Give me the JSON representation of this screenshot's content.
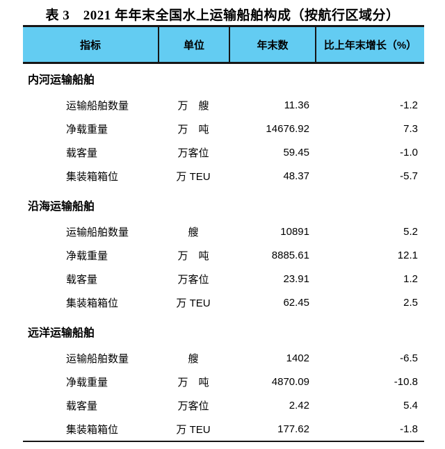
{
  "page": {
    "title": "表 3　2021 年年末全国水上运输船舶构成（按航行区域分）"
  },
  "colors": {
    "header_bg": "#63CCF2",
    "border": "#161616"
  },
  "table": {
    "columns": {
      "indicator": "指标",
      "unit": "单位",
      "year_end": "年末数",
      "growth": "比上年末增长（%）"
    },
    "sections": [
      {
        "name": "内河运输船舶",
        "rows": [
          {
            "indicator": "运输船舶数量",
            "unit": "万　艘",
            "value": "11.36",
            "growth": "-1.2"
          },
          {
            "indicator": "净载重量",
            "unit": "万　吨",
            "value": "14676.92",
            "growth": "7.3"
          },
          {
            "indicator": "载客量",
            "unit": "万客位",
            "value": "59.45",
            "growth": "-1.0"
          },
          {
            "indicator": "集装箱箱位",
            "unit": "万 TEU",
            "value": "48.37",
            "growth": "-5.7"
          }
        ]
      },
      {
        "name": "沿海运输船舶",
        "rows": [
          {
            "indicator": "运输船舶数量",
            "unit": "艘",
            "value": "10891",
            "growth": "5.2"
          },
          {
            "indicator": "净载重量",
            "unit": "万　吨",
            "value": "8885.61",
            "growth": "12.1"
          },
          {
            "indicator": "载客量",
            "unit": "万客位",
            "value": "23.91",
            "growth": "1.2"
          },
          {
            "indicator": "集装箱箱位",
            "unit": "万 TEU",
            "value": "62.45",
            "growth": "2.5"
          }
        ]
      },
      {
        "name": "远洋运输船舶",
        "rows": [
          {
            "indicator": "运输船舶数量",
            "unit": "艘",
            "value": "1402",
            "growth": "-6.5"
          },
          {
            "indicator": "净载重量",
            "unit": "万　吨",
            "value": "4870.09",
            "growth": "-10.8"
          },
          {
            "indicator": "载客量",
            "unit": "万客位",
            "value": "2.42",
            "growth": "5.4"
          },
          {
            "indicator": "集装箱箱位",
            "unit": "万 TEU",
            "value": "177.62",
            "growth": "-1.8"
          }
        ]
      }
    ]
  }
}
